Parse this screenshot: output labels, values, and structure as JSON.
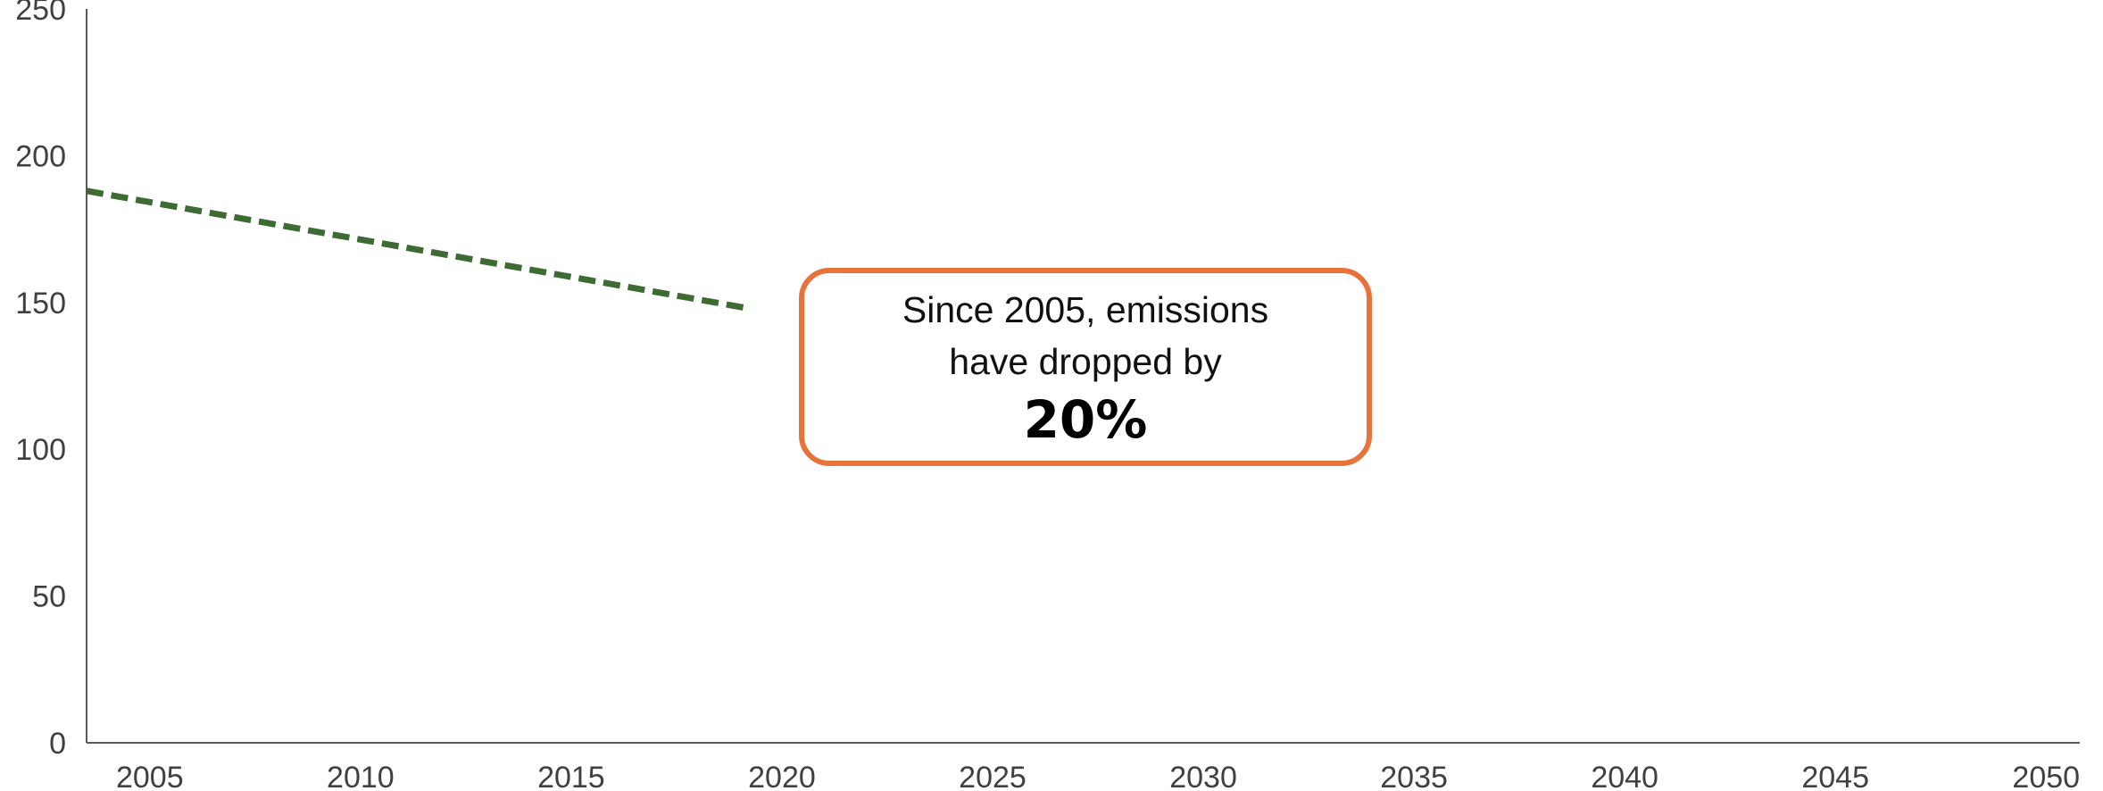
{
  "chart_data": {
    "type": "line",
    "title": "",
    "xlabel": "",
    "ylabel": "",
    "xlim": [
      2003.5,
      2050.8
    ],
    "ylim": [
      0,
      250
    ],
    "x_ticks": [
      2005,
      2010,
      2015,
      2020,
      2025,
      2030,
      2035,
      2040,
      2045,
      2050
    ],
    "y_ticks": [
      0,
      50,
      100,
      150,
      200,
      250
    ],
    "grid": false,
    "legend": "none",
    "series": [
      {
        "line_style": "dashed",
        "color": "#3E6B34",
        "x": [
          2003.5,
          2019.2
        ],
        "y": [
          188,
          148
        ]
      }
    ],
    "annotations": [
      {
        "line1": "Since 2005, emissions",
        "line2": "have dropped by",
        "value": "20%",
        "border_color": "#E8733A"
      }
    ]
  }
}
